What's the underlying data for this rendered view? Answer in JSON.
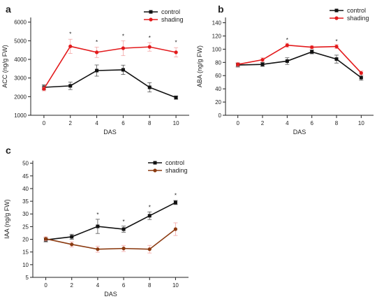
{
  "colors": {
    "control": "#111111",
    "shading_red": "#e31a1c",
    "shading_brown": "#8b3a10",
    "error_pink": "#f3a6a6"
  },
  "chart_data": [
    {
      "panel": "a",
      "type": "line",
      "xlabel": "DAS",
      "ylabel": "ACC (ng/g FW)",
      "x": [
        0,
        2,
        4,
        6,
        8,
        10
      ],
      "xticks": [
        0,
        2,
        4,
        6,
        8,
        10
      ],
      "yticks": [
        1000,
        2000,
        3000,
        4000,
        5000,
        6000
      ],
      "xlim": [
        -1,
        11
      ],
      "ylim": [
        1000,
        6250
      ],
      "grid": false,
      "legend": "top-right",
      "series": [
        {
          "name": "control",
          "color": "#111111",
          "marker": "square",
          "values": [
            2500,
            2580,
            3400,
            3440,
            2500,
            1950
          ],
          "errors": [
            140,
            200,
            300,
            250,
            250,
            90
          ]
        },
        {
          "name": "shading",
          "color": "#e31a1c",
          "marker": "circle",
          "values": [
            2420,
            4700,
            4380,
            4600,
            4670,
            4380
          ],
          "errors": [
            110,
            380,
            280,
            400,
            230,
            250
          ]
        }
      ],
      "annotations": [
        {
          "x": 2,
          "y": 5250,
          "text": "*"
        },
        {
          "x": 4,
          "y": 4820,
          "text": "*"
        },
        {
          "x": 6,
          "y": 5150,
          "text": "*"
        },
        {
          "x": 8,
          "y": 5050,
          "text": "*"
        },
        {
          "x": 10,
          "y": 4800,
          "text": "*"
        }
      ]
    },
    {
      "panel": "b",
      "type": "line",
      "xlabel": "DAS",
      "ylabel": "ABA (ng/g FW)",
      "x": [
        0,
        2,
        4,
        6,
        8,
        10
      ],
      "xticks": [
        0,
        2,
        4,
        6,
        8,
        10
      ],
      "yticks": [
        0,
        20,
        40,
        60,
        80,
        100,
        120,
        140
      ],
      "xlim": [
        -1,
        11
      ],
      "ylim": [
        0,
        148
      ],
      "grid": false,
      "legend": "top-right",
      "series": [
        {
          "name": "control",
          "color": "#111111",
          "marker": "square",
          "values": [
            76,
            77,
            82,
            96,
            85,
            57
          ],
          "errors": [
            3,
            3,
            5,
            3,
            6,
            4
          ]
        },
        {
          "name": "shading",
          "color": "#e31a1c",
          "marker": "circle",
          "values": [
            77,
            84,
            106,
            103,
            104,
            64
          ],
          "errors": [
            3,
            3,
            3,
            2,
            3,
            3
          ]
        }
      ],
      "annotations": [
        {
          "x": 4,
          "y": 111,
          "text": "*"
        },
        {
          "x": 8,
          "y": 109,
          "text": "*"
        }
      ]
    },
    {
      "panel": "c",
      "type": "line",
      "xlabel": "DAS",
      "ylabel": "IAA (ng/g FW)",
      "x": [
        0,
        2,
        4,
        6,
        8,
        10
      ],
      "xticks": [
        0,
        2,
        4,
        6,
        8,
        10
      ],
      "yticks": [
        5,
        10,
        15,
        20,
        25,
        30,
        35,
        40,
        45,
        50
      ],
      "xlim": [
        -1,
        11
      ],
      "ylim": [
        5,
        51
      ],
      "grid": false,
      "legend": "top-right",
      "series": [
        {
          "name": "control",
          "color": "#111111",
          "marker": "square",
          "values": [
            19.8,
            21.0,
            25.1,
            24.0,
            29.3,
            34.5
          ],
          "errors": [
            0.8,
            1.0,
            2.8,
            1.2,
            1.5,
            0.8
          ]
        },
        {
          "name": "shading",
          "color": "#8b3a10",
          "marker": "circle",
          "values": [
            20.2,
            18.0,
            16.1,
            16.4,
            16.1,
            24.0
          ],
          "errors": [
            0.8,
            1.0,
            1.2,
            1.2,
            1.5,
            2.5
          ]
        }
      ],
      "annotations": [
        {
          "x": 4,
          "y": 29.0,
          "text": "*"
        },
        {
          "x": 6,
          "y": 26.2,
          "text": "*"
        },
        {
          "x": 8,
          "y": 31.8,
          "text": "*"
        },
        {
          "x": 10,
          "y": 36.6,
          "text": "*"
        }
      ]
    }
  ]
}
